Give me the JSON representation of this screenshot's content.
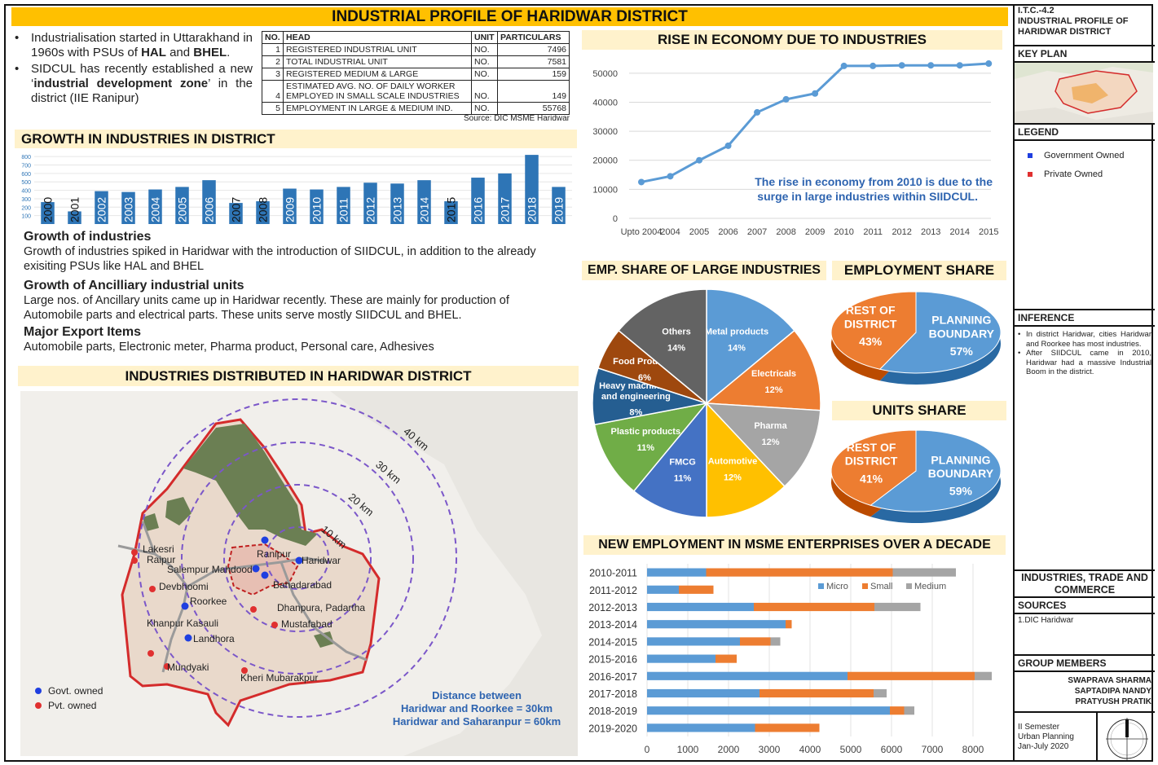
{
  "title": "INDUSTRIAL PROFILE OF HARIDWAR DISTRICT",
  "intro": {
    "p1_pre": "Industrialisation started in Uttarakhand in 1960s with PSUs of ",
    "p1_b1": "HAL",
    "p1_and": " and ",
    "p1_b2": "BHEL",
    "p1_end": ".",
    "p2_pre": "SIDCUL has recently established a new ‘",
    "p2_b": "industrial development zone",
    "p2_end": "’ in the district (IIE Ranipur)"
  },
  "table": {
    "headers": [
      "NO.",
      "HEAD",
      "UNIT",
      "PARTICULARS"
    ],
    "rows": [
      {
        "no": "1",
        "head": "REGISTERED INDUSTRIAL UNIT",
        "unit": "NO.",
        "val": "7496"
      },
      {
        "no": "2",
        "head": "TOTAL INDUSTRIAL UNIT",
        "unit": "NO.",
        "val": "7581"
      },
      {
        "no": "3",
        "head": "REGISTERED MEDIUM & LARGE",
        "unit": "NO.",
        "val": "159"
      },
      {
        "no": "4",
        "head": "ESTIMATED AVG. NO. OF DAILY WORKER EMPLOYED IN SMALL SCALE INDUSTRIES",
        "unit": "NO.",
        "val": "149"
      },
      {
        "no": "5",
        "head": "EMPLOYMENT IN LARGE & MEDIUM IND.",
        "unit": "NO.",
        "val": "55768"
      }
    ],
    "source": "Source: DIC MSME Haridwar"
  },
  "growth_header": "GROWTH IN INDUSTRIES IN DISTRICT",
  "texts": {
    "h1": "Growth of industries",
    "p1": "Growth of industries spiked in Haridwar with the introduction of SIIDCUL, in addition to the already exisiting PSUs like HAL and BHEL",
    "h2": "Growth of Ancilliary industrial units",
    "p2": "Large nos. of Ancillary units came up in Haridwar recently. These are mainly for production of Automobile parts and electrical parts. These units serve mostly SIIDCUL and BHEL.",
    "h3": "Major Export Items",
    "p3": "Automobile parts, Electronic meter, Pharma product, Personal care, Adhesives"
  },
  "map": {
    "header": "INDUSTRIES DISTRIBUTED IN HARIDWAR DISTRICT",
    "rings": [
      "10 km",
      "20 km",
      "30 km",
      "40 km"
    ],
    "places_govt": [
      "Ranipur",
      "Haridwar",
      "Salempur Mahdood",
      "Bahadarabad",
      "Roorkee",
      "Landhora"
    ],
    "places_pvt": [
      "Lakesri",
      "Raipur",
      "Devbhoomi",
      "Dhanpura, Padartha",
      "Mustafabad",
      "Khanpur Kasauli",
      "Mundyaki",
      "Kheri Mubarakpur"
    ],
    "legend_govt": "Govt. owned",
    "legend_pvt": "Pvt. owned",
    "dist_title": "Distance between",
    "dist_1": "Haridwar and Roorkee = 30km",
    "dist_2": "Haridwar and Saharanpur = 60km",
    "colors": {
      "govt": "#1f3fe0",
      "pvt": "#e03030",
      "ring": "#7b57c9",
      "border": "#d42b2b"
    }
  },
  "right": {
    "economy_header": "RISE IN ECONOMY DUE TO INDUSTRIES",
    "economy_note_1": "The rise in economy from 2010 is due to the",
    "economy_note_2": "surge in large industries within SIIDCUL.",
    "emp_large_header": "EMP. SHARE OF  LARGE INDUSTRIES",
    "emp_share_header": "EMPLOYMENT SHARE",
    "units_share_header": "UNITS SHARE",
    "msme_header": "NEW EMPLOYMENT IN MSME ENTERPRISES OVER A DECADE"
  },
  "chart_data": [
    {
      "type": "bar",
      "title": "GROWTH IN INDUSTRIES IN DISTRICT",
      "categories": [
        "2000",
        "2001",
        "2002",
        "2003",
        "2004",
        "2005",
        "2006",
        "2007",
        "2008",
        "2009",
        "2010",
        "2011",
        "2012",
        "2013",
        "2014",
        "2015",
        "2016",
        "2017",
        "2018",
        "2019"
      ],
      "values": [
        260,
        150,
        390,
        380,
        410,
        440,
        520,
        250,
        270,
        420,
        410,
        440,
        490,
        480,
        520,
        270,
        550,
        600,
        820,
        440
      ],
      "yticks": [
        100,
        200,
        300,
        400,
        500,
        600,
        700,
        800
      ],
      "ylim": [
        0,
        850
      ],
      "color": "#2e75b6"
    },
    {
      "type": "line",
      "title": "RISE IN ECONOMY DUE TO INDUSTRIES",
      "categories": [
        "Upto 2004",
        "2004",
        "2005",
        "2006",
        "2007",
        "2008",
        "2009",
        "2010",
        "2011",
        "2012",
        "2013",
        "2014",
        "2015"
      ],
      "values": [
        12500,
        14500,
        20000,
        25000,
        36500,
        41000,
        43000,
        52500,
        52500,
        52700,
        52700,
        52700,
        53300
      ],
      "yticks": [
        0,
        10000,
        20000,
        30000,
        40000,
        50000
      ],
      "ylim": [
        0,
        55000
      ],
      "color": "#5b9bd5"
    },
    {
      "type": "pie",
      "title": "EMP. SHARE OF  LARGE INDUSTRIES",
      "slices": [
        {
          "label": "Metal products",
          "value": 14,
          "color": "#5b9bd5"
        },
        {
          "label": "Electricals",
          "value": 12,
          "color": "#ed7d31"
        },
        {
          "label": "Pharma",
          "value": 12,
          "color": "#a5a5a5"
        },
        {
          "label": "Automotive",
          "value": 12,
          "color": "#ffc000"
        },
        {
          "label": "FMCG",
          "value": 11,
          "color": "#4472c4"
        },
        {
          "label": "Plastic products",
          "value": 11,
          "color": "#70ad47"
        },
        {
          "label": "Heavy machinery and engineering",
          "value": 8,
          "color": "#255e91"
        },
        {
          "label": "Food Products",
          "value": 6,
          "color": "#9e480e"
        },
        {
          "label": "Others",
          "value": 14,
          "color": "#636363"
        }
      ]
    },
    {
      "type": "pie",
      "title": "EMPLOYMENT SHARE",
      "slices": [
        {
          "label": "PLANNING BOUNDARY",
          "value": 57,
          "color": "#5b9bd5"
        },
        {
          "label": "REST OF DISTRICT",
          "value": 43,
          "color": "#ed7d31"
        }
      ]
    },
    {
      "type": "pie",
      "title": "UNITS SHARE",
      "slices": [
        {
          "label": "PLANNING BOUNDARY",
          "value": 59,
          "color": "#5b9bd5"
        },
        {
          "label": "REST OF DISTRICT",
          "value": 41,
          "color": "#ed7d31"
        }
      ]
    },
    {
      "type": "bar",
      "orientation": "horizontal-stacked",
      "title": "NEW EMPLOYMENT IN MSME ENTERPRISES OVER A DECADE",
      "categories": [
        "2010-2011",
        "2011-2012",
        "2012-2013",
        "2013-2014",
        "2014-2015",
        "2015-2016",
        "2016-2017",
        "2017-2018",
        "2018-2019",
        "2019-2020"
      ],
      "series": [
        {
          "name": "Micro",
          "color": "#5b9bd5",
          "values": [
            1450,
            780,
            2620,
            3400,
            2280,
            1680,
            4920,
            2760,
            5960,
            2650
          ]
        },
        {
          "name": "Small",
          "color": "#ed7d31",
          "values": [
            4580,
            850,
            2960,
            150,
            750,
            520,
            3120,
            2800,
            350,
            1580
          ]
        },
        {
          "name": "Medium",
          "color": "#a5a5a5",
          "values": [
            1550,
            0,
            1130,
            0,
            240,
            0,
            420,
            320,
            250,
            0
          ]
        }
      ],
      "xticks": [
        0,
        1000,
        2000,
        3000,
        4000,
        5000,
        6000,
        7000,
        8000
      ],
      "xlim": [
        0,
        8600
      ]
    }
  ],
  "sidebar": {
    "code": "I.T.C.-4.2",
    "sheet_title": "INDUSTRIAL PROFILE OF HARIDWAR DISTRICT",
    "key_plan": "KEY PLAN",
    "legend": "LEGEND",
    "legend_govt": "Government Owned",
    "legend_pvt": "Private Owned",
    "inference": "INFERENCE",
    "inf_1": "In district Haridwar, cities Haridwar and Roorkee has most industries.",
    "inf_2": "After SIIDCUL came in 2010, Haridwar had a massive Industrial Boom in the district.",
    "section": "INDUSTRIES, TRADE AND COMMERCE",
    "sources": "SOURCES",
    "source_1": "1.DIC Haridwar",
    "group": "GROUP MEMBERS",
    "members": [
      "SWAPRAVA SHARMA",
      "SAPTADIPA NANDY",
      "PRATYUSH PRATIK"
    ],
    "semester": "II Semester",
    "course": "Urban Planning",
    "session": "Jan-July 2020"
  }
}
